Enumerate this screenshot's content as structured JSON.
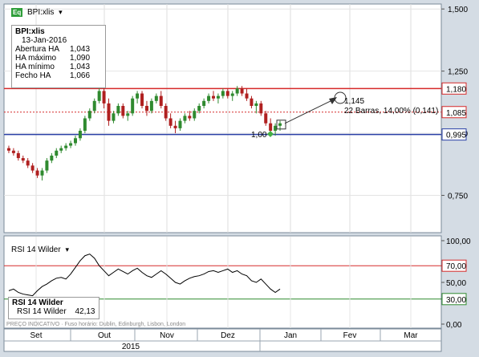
{
  "chart_header": {
    "badge": "Eq",
    "symbol_label": "BPI:xlis",
    "dropdown": "▾"
  },
  "info_box": {
    "title": "BPI:xlis",
    "date": "13-Jan-2016",
    "rows": [
      {
        "label": "Abertura HA",
        "value": "1,043"
      },
      {
        "label": "HA máximo",
        "value": "1,090"
      },
      {
        "label": "HA mínimo",
        "value": "1,043"
      },
      {
        "label": "Fecho HA",
        "value": "1,066"
      }
    ]
  },
  "price_axis": {
    "ticks": [
      "1,500",
      "1,250",
      "1,000",
      "0,750"
    ],
    "tick_values": [
      1.5,
      1.25,
      1.0,
      0.75
    ],
    "markers": [
      {
        "label": "1,180",
        "value": 1.18,
        "color": "#d62a2a"
      },
      {
        "label": "1,085",
        "value": 1.085,
        "color": "#d62a2a"
      },
      {
        "label": "0,995",
        "value": 0.995,
        "color": "#2a3fa6"
      }
    ]
  },
  "annotations": {
    "target_value": "1,145",
    "projection": "22 Barras, 14,00% (0,141)",
    "start_value": "1,00"
  },
  "rsi": {
    "header": "RSI 14 Wilder",
    "dropdown": "▾",
    "legend_title": "RSI 14 Wilder",
    "legend_label": "RSI 14 Wilder",
    "legend_value": "42,13",
    "ticks": [
      "100,00",
      "70,00",
      "50,00",
      "30,00",
      "0,00"
    ],
    "tick_values": [
      100,
      70,
      50,
      30,
      0
    ],
    "overbought": 70,
    "oversold": 30
  },
  "footer_text": "PREÇO INDICATIVO · Fuso horário: Dublin, Edinburgh, Lisbon, London",
  "time_axis": {
    "months": [
      "Set",
      "Out",
      "Nov",
      "Dez",
      "Jan",
      "Fev",
      "Mar"
    ],
    "year": "2015"
  },
  "colors": {
    "up": "#2f8a2f",
    "down": "#b02020",
    "resistance": "#d62a2a",
    "support": "#2a3fa6",
    "rsi_line": "#000000"
  },
  "chart_data": {
    "type": "candlestick",
    "title": "BPI:xlis",
    "ylim": [
      0.6,
      1.52
    ],
    "candles": [
      [
        0.94,
        0.95,
        0.92,
        0.93
      ],
      [
        0.93,
        0.94,
        0.91,
        0.92
      ],
      [
        0.92,
        0.93,
        0.89,
        0.9
      ],
      [
        0.9,
        0.91,
        0.88,
        0.89
      ],
      [
        0.89,
        0.9,
        0.86,
        0.87
      ],
      [
        0.87,
        0.88,
        0.84,
        0.85
      ],
      [
        0.85,
        0.86,
        0.82,
        0.83
      ],
      [
        0.83,
        0.86,
        0.81,
        0.85
      ],
      [
        0.85,
        0.9,
        0.84,
        0.89
      ],
      [
        0.89,
        0.92,
        0.88,
        0.91
      ],
      [
        0.91,
        0.94,
        0.9,
        0.93
      ],
      [
        0.93,
        0.95,
        0.92,
        0.94
      ],
      [
        0.94,
        0.96,
        0.93,
        0.95
      ],
      [
        0.95,
        0.97,
        0.94,
        0.96
      ],
      [
        0.96,
        0.99,
        0.95,
        0.98
      ],
      [
        0.98,
        1.02,
        0.97,
        1.01
      ],
      [
        1.01,
        1.07,
        1.0,
        1.06
      ],
      [
        1.06,
        1.1,
        1.05,
        1.09
      ],
      [
        1.09,
        1.14,
        1.08,
        1.13
      ],
      [
        1.13,
        1.18,
        1.12,
        1.17
      ],
      [
        1.17,
        1.19,
        1.1,
        1.12
      ],
      [
        1.12,
        1.14,
        1.03,
        1.05
      ],
      [
        1.05,
        1.09,
        1.04,
        1.08
      ],
      [
        1.08,
        1.12,
        1.07,
        1.11
      ],
      [
        1.11,
        1.12,
        1.06,
        1.07
      ],
      [
        1.07,
        1.09,
        1.05,
        1.08
      ],
      [
        1.08,
        1.15,
        1.07,
        1.14
      ],
      [
        1.14,
        1.17,
        1.12,
        1.16
      ],
      [
        1.16,
        1.17,
        1.1,
        1.11
      ],
      [
        1.11,
        1.13,
        1.07,
        1.09
      ],
      [
        1.09,
        1.14,
        1.08,
        1.13
      ],
      [
        1.13,
        1.16,
        1.12,
        1.15
      ],
      [
        1.15,
        1.17,
        1.1,
        1.11
      ],
      [
        1.11,
        1.12,
        1.05,
        1.06
      ],
      [
        1.06,
        1.08,
        1.02,
        1.03
      ],
      [
        1.03,
        1.05,
        1.0,
        1.02
      ],
      [
        1.02,
        1.06,
        1.01,
        1.05
      ],
      [
        1.05,
        1.08,
        1.04,
        1.07
      ],
      [
        1.07,
        1.09,
        1.05,
        1.06
      ],
      [
        1.06,
        1.1,
        1.05,
        1.09
      ],
      [
        1.09,
        1.12,
        1.08,
        1.11
      ],
      [
        1.11,
        1.14,
        1.1,
        1.13
      ],
      [
        1.13,
        1.16,
        1.12,
        1.15
      ],
      [
        1.15,
        1.17,
        1.13,
        1.14
      ],
      [
        1.14,
        1.16,
        1.12,
        1.15
      ],
      [
        1.15,
        1.18,
        1.14,
        1.17
      ],
      [
        1.17,
        1.18,
        1.14,
        1.15
      ],
      [
        1.15,
        1.17,
        1.13,
        1.16
      ],
      [
        1.16,
        1.19,
        1.15,
        1.18
      ],
      [
        1.18,
        1.19,
        1.15,
        1.16
      ],
      [
        1.16,
        1.18,
        1.13,
        1.14
      ],
      [
        1.14,
        1.15,
        1.1,
        1.11
      ],
      [
        1.11,
        1.13,
        1.08,
        1.12
      ],
      [
        1.12,
        1.13,
        1.07,
        1.08
      ],
      [
        1.08,
        1.09,
        1.03,
        1.04
      ],
      [
        1.04,
        1.06,
        1.0,
        1.01
      ],
      [
        1.01,
        1.04,
        0.99,
        1.03
      ],
      [
        1.03,
        1.05,
        1.01,
        1.04
      ]
    ],
    "resistance_line": 1.18,
    "dotted_line": 1.085,
    "support_line": 0.995,
    "rsi_values": [
      40,
      42,
      38,
      36,
      35,
      34,
      40,
      45,
      48,
      52,
      55,
      56,
      54,
      60,
      68,
      76,
      82,
      84,
      79,
      70,
      64,
      58,
      62,
      66,
      63,
      60,
      64,
      67,
      62,
      58,
      56,
      60,
      64,
      60,
      55,
      50,
      48,
      52,
      55,
      57,
      58,
      60,
      63,
      64,
      62,
      64,
      66,
      62,
      64,
      60,
      58,
      52,
      50,
      54,
      48,
      42,
      38,
      42
    ]
  }
}
